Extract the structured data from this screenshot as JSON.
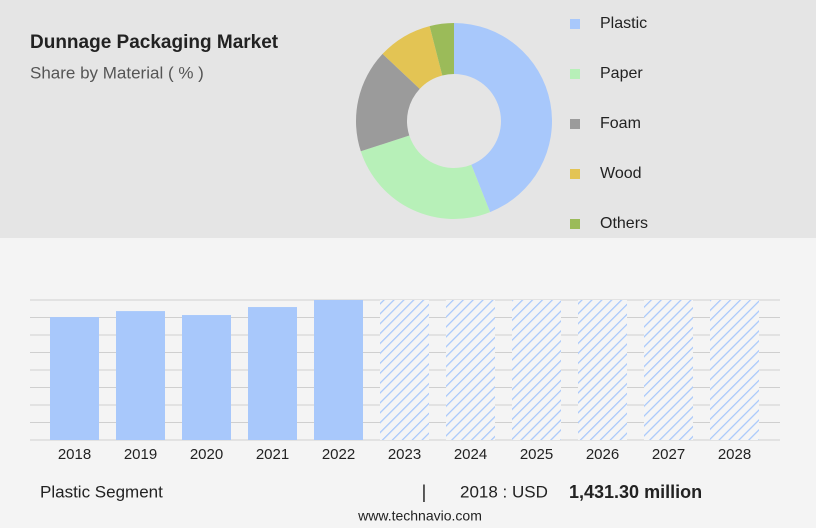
{
  "chart_data": [
    {
      "type": "donut",
      "title": "Dunnage Packaging Market",
      "subtitle": "Share by Material ( % )",
      "categories": [
        "Plastic",
        "Paper",
        "Foam",
        "Wood",
        "Others"
      ],
      "values": [
        44,
        26,
        17,
        9,
        4
      ],
      "colors": [
        "#a8c8fb",
        "#b7f0b8",
        "#9b9b9b",
        "#e3c454",
        "#9bbb59"
      ],
      "legend": "right"
    },
    {
      "type": "bar",
      "categories": [
        "2018",
        "2019",
        "2020",
        "2021",
        "2022",
        "2023",
        "2024",
        "2025",
        "2026",
        "2027",
        "2028"
      ],
      "values": [
        1431.3,
        1501,
        1455,
        1548,
        1630,
        null,
        null,
        null,
        null,
        null,
        null
      ],
      "color": "#a8c8fb",
      "ylim": [
        0,
        1630
      ],
      "grid": true
    }
  ],
  "footer": {
    "segment": "Plastic Segment",
    "separator": "|",
    "year_label": "2018 : USD",
    "value_label": "1,431.30 million",
    "source": "www.technavio.com"
  }
}
